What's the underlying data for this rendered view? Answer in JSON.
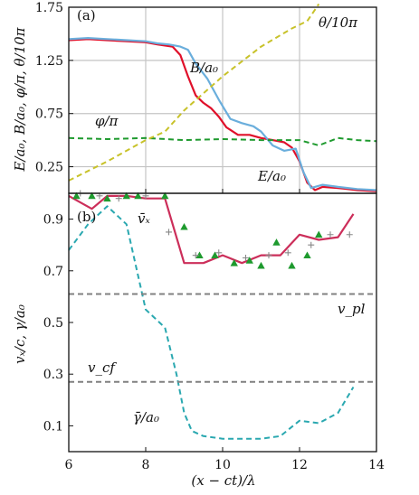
{
  "chart_data": [
    {
      "panel": "(a)",
      "type": "line",
      "ylabel": "E/a₀, B/a₀, φ/π, θ/10π",
      "xlim": [
        6,
        14
      ],
      "ylim": [
        0,
        1.75
      ],
      "yticks": [
        "0.25",
        "0.75",
        "1.25",
        "1.75"
      ],
      "ytick_values": [
        0.25,
        0.75,
        1.25,
        1.75
      ],
      "grid": true,
      "annotations": [
        "θ/10π",
        "B/a₀",
        "φ/π",
        "E/a₀"
      ],
      "series": [
        {
          "name": "E/a₀",
          "color": "#e0102a",
          "style": "solid",
          "x": [
            6.0,
            6.5,
            7.0,
            7.5,
            8.0,
            8.3,
            8.7,
            8.9,
            9.1,
            9.3,
            9.5,
            9.7,
            9.9,
            10.1,
            10.4,
            10.7,
            11.0,
            11.3,
            11.6,
            11.8,
            12.0,
            12.2,
            12.4,
            12.6,
            13.0,
            13.5,
            14.0
          ],
          "y": [
            1.44,
            1.45,
            1.44,
            1.43,
            1.42,
            1.4,
            1.38,
            1.3,
            1.1,
            0.92,
            0.85,
            0.8,
            0.72,
            0.62,
            0.55,
            0.55,
            0.52,
            0.5,
            0.48,
            0.43,
            0.3,
            0.1,
            0.03,
            0.06,
            0.05,
            0.03,
            0.02
          ]
        },
        {
          "name": "B/a₀",
          "color": "#6aaedc",
          "style": "solid",
          "x": [
            6.0,
            6.5,
            7.0,
            7.5,
            8.0,
            8.3,
            8.6,
            8.9,
            9.1,
            9.3,
            9.6,
            9.9,
            10.2,
            10.5,
            10.8,
            11.0,
            11.3,
            11.6,
            11.9,
            12.1,
            12.3,
            12.6,
            13.0,
            13.5,
            14.0
          ],
          "y": [
            1.45,
            1.46,
            1.45,
            1.44,
            1.43,
            1.41,
            1.4,
            1.38,
            1.35,
            1.22,
            1.08,
            0.88,
            0.7,
            0.66,
            0.63,
            0.58,
            0.45,
            0.4,
            0.42,
            0.2,
            0.05,
            0.08,
            0.06,
            0.04,
            0.03
          ]
        },
        {
          "name": "φ/π",
          "color": "#1e9a2e",
          "style": "dashed",
          "x": [
            6.0,
            7.0,
            8.0,
            9.0,
            10.0,
            11.0,
            12.0,
            12.5,
            13.0,
            13.5,
            14.0
          ],
          "y": [
            0.52,
            0.51,
            0.52,
            0.5,
            0.51,
            0.5,
            0.5,
            0.45,
            0.52,
            0.5,
            0.49
          ]
        },
        {
          "name": "θ/10π",
          "color": "#c8c22a",
          "style": "dashed",
          "x": [
            6.0,
            7.0,
            8.0,
            8.5,
            9.0,
            10.0,
            11.0,
            11.8,
            12.2,
            12.5
          ],
          "y": [
            0.12,
            0.3,
            0.5,
            0.58,
            0.78,
            1.1,
            1.38,
            1.55,
            1.62,
            1.78
          ]
        }
      ]
    },
    {
      "panel": "(b)",
      "type": "line",
      "xlabel": "(x − ct)/λ",
      "ylabel": "vₓ/c, γ/a₀",
      "xlim": [
        6,
        14
      ],
      "ylim": [
        0,
        1.0
      ],
      "xticks": [
        "6",
        "8",
        "10",
        "12",
        "14"
      ],
      "xtick_values": [
        6,
        8,
        10,
        12,
        14
      ],
      "yticks": [
        "0.1",
        "0.3",
        "0.5",
        "0.7",
        "0.9"
      ],
      "ytick_values": [
        0.1,
        0.3,
        0.5,
        0.7,
        0.9
      ],
      "grid": false,
      "annotations": [
        "v̄ₓ",
        "v_pl",
        "v_cf",
        "γ̄/a₀"
      ],
      "series": [
        {
          "name": "v̄ₓ",
          "color": "#cc2e5a",
          "style": "solid",
          "x": [
            6.0,
            6.6,
            7.0,
            7.5,
            8.0,
            8.5,
            9.0,
            9.5,
            10.0,
            10.5,
            11.0,
            11.5,
            12.0,
            12.5,
            13.0,
            13.4
          ],
          "y": [
            0.99,
            0.94,
            0.99,
            0.99,
            0.98,
            0.98,
            0.73,
            0.73,
            0.76,
            0.73,
            0.76,
            0.76,
            0.84,
            0.82,
            0.83,
            0.92
          ]
        },
        {
          "name": "γ̄/a₀",
          "color": "#2aa8b0",
          "style": "dashed",
          "x": [
            6.0,
            6.5,
            7.0,
            7.5,
            8.0,
            8.5,
            8.8,
            9.0,
            9.2,
            9.5,
            10.0,
            10.5,
            11.0,
            11.5,
            12.0,
            12.5,
            13.0,
            13.4
          ],
          "y": [
            0.78,
            0.88,
            0.95,
            0.88,
            0.55,
            0.48,
            0.3,
            0.15,
            0.08,
            0.06,
            0.05,
            0.05,
            0.05,
            0.06,
            0.12,
            0.11,
            0.15,
            0.25
          ]
        },
        {
          "name": "v_pl",
          "color": "#808080",
          "style": "dashed",
          "x": [
            6,
            14
          ],
          "y": [
            0.61,
            0.61
          ]
        },
        {
          "name": "v_cf",
          "color": "#808080",
          "style": "dashed",
          "x": [
            6,
            14
          ],
          "y": [
            0.27,
            0.27
          ]
        },
        {
          "name": "triangles",
          "color": "#1e9a2e",
          "style": "marker-triangle",
          "x": [
            6.2,
            6.6,
            7.0,
            7.5,
            7.8,
            8.5,
            9.0,
            9.4,
            9.8,
            10.3,
            10.7,
            11.0,
            11.4,
            11.8,
            12.2,
            12.5
          ],
          "y": [
            0.99,
            0.99,
            0.98,
            0.99,
            0.99,
            0.99,
            0.87,
            0.76,
            0.76,
            0.73,
            0.74,
            0.72,
            0.81,
            0.72,
            0.76,
            0.84
          ]
        },
        {
          "name": "crosses",
          "color": "#888888",
          "style": "marker-plus",
          "x": [
            6.3,
            6.8,
            7.3,
            8.0,
            8.6,
            9.3,
            9.9,
            10.6,
            11.2,
            11.7,
            12.3,
            12.8,
            13.3
          ],
          "y": [
            1.0,
            0.99,
            0.98,
            0.99,
            0.85,
            0.76,
            0.77,
            0.75,
            0.76,
            0.77,
            0.8,
            0.84,
            0.84
          ]
        }
      ]
    }
  ]
}
